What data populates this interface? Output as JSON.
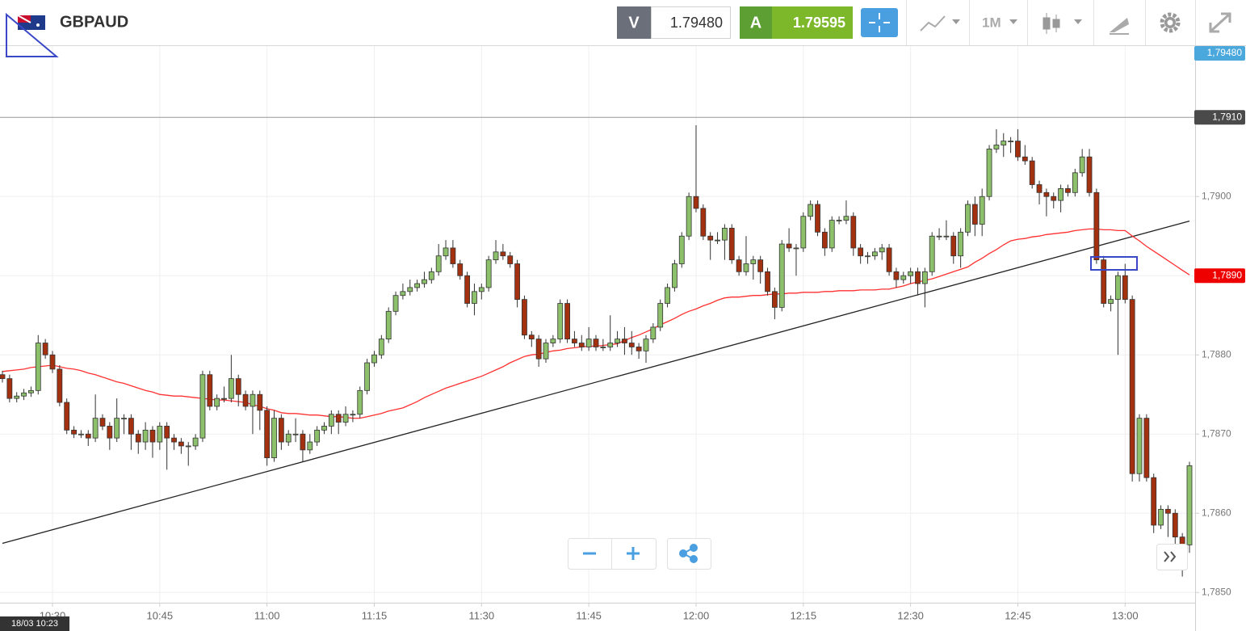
{
  "chart_data": {
    "type": "candlestick",
    "symbol": "GBPAUD",
    "quote": {
      "sell_label": "V",
      "sell": "1.79480",
      "buy_label": "A",
      "buy": "1.79595"
    },
    "timeframe": "1M",
    "start_label": "18/03 10:23",
    "categories": [
      null,
      null,
      null,
      null,
      null,
      null,
      null,
      "10:30",
      null,
      null,
      null,
      null,
      null,
      null,
      null,
      null,
      null,
      null,
      null,
      null,
      null,
      null,
      "10:45",
      null,
      null,
      null,
      null,
      null,
      null,
      null,
      null,
      null,
      null,
      null,
      null,
      null,
      null,
      "11:00",
      null,
      null,
      null,
      null,
      null,
      null,
      null,
      null,
      null,
      null,
      null,
      null,
      null,
      null,
      "11:15",
      null,
      null,
      null,
      null,
      null,
      null,
      null,
      null,
      null,
      null,
      null,
      null,
      null,
      null,
      "11:30",
      null,
      null,
      null,
      null,
      null,
      null,
      null,
      null,
      null,
      null,
      null,
      null,
      null,
      null,
      "11:45",
      null,
      null,
      null,
      null,
      null,
      null,
      null,
      null,
      null,
      null,
      null,
      null,
      null,
      null,
      "12:00",
      null,
      null,
      null,
      null,
      null,
      null,
      null,
      null,
      null,
      null,
      null,
      null,
      null,
      null,
      "12:15",
      null,
      null,
      null,
      null,
      null,
      null,
      null,
      null,
      null,
      null,
      null,
      null,
      null,
      null,
      "12:30",
      null,
      null,
      null,
      null,
      null,
      null,
      null,
      null,
      null,
      null,
      null,
      null,
      null,
      null,
      "12:45",
      null,
      null,
      null,
      null,
      null,
      null,
      null,
      null,
      null,
      null,
      null,
      null,
      null,
      null,
      "13:00",
      null,
      null,
      null,
      null,
      null,
      null,
      null,
      null,
      null
    ],
    "open": [
      1.78775,
      1.7877,
      1.78745,
      1.78748,
      1.78752,
      1.78755,
      1.78815,
      1.788,
      1.78782,
      1.7874,
      1.78705,
      1.787,
      1.787,
      1.78695,
      1.7872,
      1.7871,
      1.78695,
      1.7872,
      1.7872,
      1.787,
      1.7869,
      1.78705,
      1.7869,
      1.7871,
      1.78695,
      1.7869,
      1.78685,
      1.78685,
      1.78695,
      1.78775,
      1.78735,
      1.78745,
      1.78745,
      1.7877,
      1.7875,
      1.78735,
      1.7875,
      1.7873,
      1.7867,
      1.7872,
      1.7869,
      1.787,
      1.787,
      1.7868,
      1.7869,
      1.78705,
      1.7871,
      1.78725,
      1.78715,
      1.78725,
      1.78725,
      1.78755,
      1.7879,
      1.788,
      1.7882,
      1.78855,
      1.78875,
      1.7888,
      1.78885,
      1.7889,
      1.78895,
      1.78905,
      1.78925,
      1.78935,
      1.78915,
      1.789,
      1.78865,
      1.7888,
      1.78885,
      1.7892,
      1.7893,
      1.78925,
      1.78915,
      1.7887,
      1.78825,
      1.7882,
      1.78795,
      1.78815,
      1.7882,
      1.78865,
      1.7882,
      1.78815,
      1.7881,
      1.7882,
      1.7881,
      1.7881,
      1.78815,
      1.7882,
      1.78815,
      1.7881,
      1.78805,
      1.7882,
      1.78835,
      1.78865,
      1.78885,
      1.78915,
      1.7895,
      1.79,
      1.78985,
      1.7895,
      1.78945,
      1.78945,
      1.7896,
      1.7892,
      1.78905,
      1.78915,
      1.7892,
      1.78905,
      1.7888,
      1.7886,
      1.7894,
      1.78935,
      1.78935,
      1.78975,
      1.7899,
      1.78955,
      1.78935,
      1.7897,
      1.7897,
      1.78975,
      1.78935,
      1.78925,
      1.78925,
      1.7893,
      1.78935,
      1.78905,
      1.78895,
      1.789,
      1.78905,
      1.7889,
      1.78905,
      1.7895,
      1.7895,
      1.7895,
      1.78925,
      1.78955,
      1.7899,
      1.78965,
      1.79,
      1.7906,
      1.79065,
      1.7907,
      1.7907,
      1.7905,
      1.79045,
      1.79015,
      1.79005,
      1.79,
      1.78995,
      1.7901,
      1.79005,
      1.7903,
      1.7905,
      1.79005,
      1.7892,
      1.78865,
      1.7887,
      1.789,
      1.7887,
      1.7865,
      1.7872,
      1.78645,
      1.78585,
      1.78605,
      1.786,
      1.7857,
      1.7856
    ],
    "high": [
      1.7878,
      1.78775,
      1.78753,
      1.78757,
      1.7876,
      1.78825,
      1.7882,
      1.78805,
      1.78787,
      1.78745,
      1.7871,
      1.78705,
      1.78705,
      1.7875,
      1.78725,
      1.78715,
      1.78745,
      1.78725,
      1.78725,
      1.78705,
      1.78715,
      1.7871,
      1.78715,
      1.78715,
      1.787,
      1.78695,
      1.7869,
      1.787,
      1.7878,
      1.7878,
      1.7875,
      1.7876,
      1.788,
      1.78775,
      1.78755,
      1.78755,
      1.78755,
      1.78735,
      1.7873,
      1.78725,
      1.78705,
      1.7872,
      1.78705,
      1.787,
      1.7871,
      1.78715,
      1.7873,
      1.7873,
      1.78735,
      1.7873,
      1.7876,
      1.78795,
      1.78805,
      1.78825,
      1.7886,
      1.7888,
      1.7889,
      1.78895,
      1.78895,
      1.78905,
      1.7891,
      1.7894,
      1.78945,
      1.78945,
      1.7892,
      1.78905,
      1.7889,
      1.7889,
      1.78925,
      1.78945,
      1.7894,
      1.7893,
      1.7892,
      1.78875,
      1.7883,
      1.78825,
      1.7882,
      1.78825,
      1.7887,
      1.7887,
      1.7883,
      1.78825,
      1.78835,
      1.78825,
      1.7882,
      1.7885,
      1.7883,
      1.78835,
      1.7883,
      1.78815,
      1.78825,
      1.7884,
      1.7887,
      1.7889,
      1.7892,
      1.78955,
      1.79005,
      1.7909,
      1.7899,
      1.78955,
      1.78955,
      1.78965,
      1.78965,
      1.78925,
      1.7895,
      1.78925,
      1.78925,
      1.7891,
      1.78885,
      1.78945,
      1.7896,
      1.7894,
      1.7898,
      1.78995,
      1.78995,
      1.7896,
      1.78975,
      1.78975,
      1.78995,
      1.7898,
      1.7894,
      1.7893,
      1.78935,
      1.7894,
      1.7894,
      1.7891,
      1.78905,
      1.7891,
      1.7891,
      1.7891,
      1.78955,
      1.7896,
      1.7897,
      1.78955,
      1.7896,
      1.78995,
      1.79,
      1.7901,
      1.79065,
      1.79085,
      1.7908,
      1.79075,
      1.79085,
      1.79065,
      1.7905,
      1.7902,
      1.7901,
      1.79005,
      1.79015,
      1.79015,
      1.79035,
      1.7906,
      1.7906,
      1.7901,
      1.78925,
      1.78875,
      1.78905,
      1.78915,
      1.78875,
      1.78725,
      1.78725,
      1.7865,
      1.7861,
      1.7861,
      1.78605,
      1.78575,
      1.78665
    ],
    "low": [
      1.78765,
      1.7874,
      1.7874,
      1.78743,
      1.78747,
      1.7875,
      1.78795,
      1.78777,
      1.78735,
      1.787,
      1.78695,
      1.78695,
      1.78685,
      1.7869,
      1.78705,
      1.7868,
      1.7869,
      1.787,
      1.7868,
      1.78675,
      1.7868,
      1.7867,
      1.7868,
      1.78655,
      1.7868,
      1.78675,
      1.7866,
      1.7868,
      1.7869,
      1.7873,
      1.7873,
      1.7874,
      1.7874,
      1.78735,
      1.7873,
      1.787,
      1.78705,
      1.7866,
      1.78665,
      1.7868,
      1.78685,
      1.7869,
      1.78665,
      1.78675,
      1.78685,
      1.787,
      1.787,
      1.787,
      1.7871,
      1.78715,
      1.7872,
      1.7875,
      1.78785,
      1.78795,
      1.78815,
      1.7885,
      1.7887,
      1.78875,
      1.7888,
      1.78885,
      1.7889,
      1.789,
      1.7892,
      1.7891,
      1.78895,
      1.7886,
      1.7885,
      1.7887,
      1.7888,
      1.78915,
      1.7892,
      1.7891,
      1.7886,
      1.7882,
      1.7881,
      1.78785,
      1.7879,
      1.7881,
      1.78815,
      1.78815,
      1.7881,
      1.78805,
      1.78805,
      1.78805,
      1.78805,
      1.78805,
      1.7881,
      1.788,
      1.788,
      1.78795,
      1.7879,
      1.78815,
      1.7883,
      1.7886,
      1.7888,
      1.7891,
      1.78945,
      1.7898,
      1.78945,
      1.7892,
      1.7894,
      1.7892,
      1.78915,
      1.789,
      1.789,
      1.78895,
      1.7889,
      1.78875,
      1.78845,
      1.78855,
      1.7893,
      1.789,
      1.7893,
      1.7897,
      1.7895,
      1.78925,
      1.7893,
      1.78965,
      1.78965,
      1.78925,
      1.78915,
      1.78915,
      1.7892,
      1.7892,
      1.789,
      1.78885,
      1.7889,
      1.7889,
      1.78875,
      1.7886,
      1.789,
      1.78945,
      1.78945,
      1.78915,
      1.7891,
      1.7895,
      1.7895,
      1.7895,
      1.78995,
      1.79055,
      1.7905,
      1.79055,
      1.79045,
      1.7904,
      1.7901,
      1.7899,
      1.78975,
      1.78985,
      1.7898,
      1.79,
      1.79,
      1.79025,
      1.79,
      1.78915,
      1.7886,
      1.78855,
      1.788,
      1.78865,
      1.7864,
      1.7864,
      1.7864,
      1.78575,
      1.7858,
      1.7857,
      1.7856,
      1.7852,
      1.7855
    ],
    "close": [
      1.7877,
      1.78745,
      1.78748,
      1.78752,
      1.78755,
      1.78815,
      1.788,
      1.78782,
      1.7874,
      1.78705,
      1.787,
      1.787,
      1.78695,
      1.7872,
      1.7871,
      1.78695,
      1.7872,
      1.7872,
      1.787,
      1.7869,
      1.78705,
      1.7869,
      1.7871,
      1.78695,
      1.7869,
      1.78685,
      1.78685,
      1.78695,
      1.78775,
      1.78735,
      1.78745,
      1.78745,
      1.7877,
      1.7875,
      1.78735,
      1.7875,
      1.7873,
      1.7867,
      1.7872,
      1.7869,
      1.787,
      1.787,
      1.7868,
      1.7869,
      1.78705,
      1.7871,
      1.78725,
      1.78715,
      1.78725,
      1.78725,
      1.78755,
      1.7879,
      1.788,
      1.7882,
      1.78855,
      1.78875,
      1.7888,
      1.78885,
      1.7889,
      1.78895,
      1.78905,
      1.78925,
      1.78935,
      1.78915,
      1.789,
      1.78865,
      1.7888,
      1.78885,
      1.7892,
      1.7893,
      1.78925,
      1.78915,
      1.7887,
      1.78825,
      1.7882,
      1.78795,
      1.78815,
      1.7882,
      1.78865,
      1.7882,
      1.78815,
      1.7881,
      1.7882,
      1.7881,
      1.7881,
      1.78815,
      1.7882,
      1.78815,
      1.7881,
      1.78805,
      1.7882,
      1.78835,
      1.78865,
      1.78885,
      1.78915,
      1.7895,
      1.79,
      1.78985,
      1.7895,
      1.78945,
      1.78945,
      1.7896,
      1.7892,
      1.78905,
      1.78915,
      1.7892,
      1.78905,
      1.7888,
      1.7886,
      1.7894,
      1.78935,
      1.78935,
      1.78975,
      1.7899,
      1.78955,
      1.78935,
      1.7897,
      1.7897,
      1.78975,
      1.78935,
      1.78925,
      1.78925,
      1.7893,
      1.78935,
      1.78905,
      1.78895,
      1.789,
      1.78905,
      1.7889,
      1.78905,
      1.7895,
      1.7895,
      1.7895,
      1.78925,
      1.78955,
      1.7899,
      1.78965,
      1.79,
      1.7906,
      1.79065,
      1.7907,
      1.7907,
      1.7905,
      1.79045,
      1.79015,
      1.79005,
      1.79,
      1.78995,
      1.7901,
      1.79005,
      1.7903,
      1.7905,
      1.79005,
      1.7892,
      1.78865,
      1.7887,
      1.789,
      1.7887,
      1.7865,
      1.7872,
      1.78645,
      1.78585,
      1.78605,
      1.786,
      1.7857,
      1.7856,
      1.7866
    ],
    "moving_average": [
      1.78779,
      1.7878,
      1.78781,
      1.78782,
      1.78784,
      1.78785,
      1.78786,
      1.78787,
      1.78785,
      1.78783,
      1.78782,
      1.7878,
      1.78777,
      1.78775,
      1.78772,
      1.78769,
      1.78766,
      1.78764,
      1.78761,
      1.78758,
      1.78755,
      1.78753,
      1.7875,
      1.78749,
      1.78748,
      1.78748,
      1.78747,
      1.78746,
      1.78745,
      1.78744,
      1.78743,
      1.78743,
      1.78742,
      1.78741,
      1.7874,
      1.78737,
      1.78735,
      1.78732,
      1.7873,
      1.78727,
      1.78726,
      1.78726,
      1.78725,
      1.78724,
      1.78724,
      1.78723,
      1.78722,
      1.78722,
      1.78721,
      1.7872,
      1.7872,
      1.78722,
      1.78724,
      1.78726,
      1.78729,
      1.78731,
      1.78733,
      1.78737,
      1.78741,
      1.78746,
      1.7875,
      1.78754,
      1.78758,
      1.78761,
      1.78764,
      1.78767,
      1.7877,
      1.78773,
      1.78777,
      1.78781,
      1.78785,
      1.7879,
      1.78794,
      1.78798,
      1.788,
      1.78801,
      1.78803,
      1.78805,
      1.78806,
      1.78808,
      1.78809,
      1.7881,
      1.78811,
      1.78811,
      1.78812,
      1.78813,
      1.78814,
      1.78818,
      1.78822,
      1.78825,
      1.78829,
      1.78833,
      1.78838,
      1.78842,
      1.78846,
      1.78851,
      1.78855,
      1.78858,
      1.78862,
      1.78865,
      1.78869,
      1.78872,
      1.78873,
      1.78873,
      1.78874,
      1.78875,
      1.78875,
      1.78876,
      1.78877,
      1.78877,
      1.78878,
      1.78878,
      1.78879,
      1.78879,
      1.78879,
      1.7888,
      1.7888,
      1.78881,
      1.78881,
      1.78881,
      1.78882,
      1.78882,
      1.78882,
      1.78883,
      1.78883,
      1.78885,
      1.78887,
      1.7889,
      1.78892,
      1.78894,
      1.78896,
      1.78899,
      1.78902,
      1.78905,
      1.78908,
      1.78911,
      1.78917,
      1.78922,
      1.78928,
      1.78933,
      1.78939,
      1.78944,
      1.78946,
      1.78947,
      1.78949,
      1.7895,
      1.78952,
      1.78953,
      1.78954,
      1.78955,
      1.78957,
      1.78958,
      1.78959,
      1.78959,
      1.78958,
      1.78958,
      1.78957,
      1.78957,
      1.7895,
      1.78944,
      1.78937,
      1.78931,
      1.78925,
      1.78919,
      1.78913,
      1.78907,
      1.78901
    ],
    "trend_line": [
      1.78562,
      1.78969
    ],
    "up_color": "#8cc06a",
    "down_color": "#a3300f",
    "ma_color": "#ff3030",
    "trend_color": "#222222",
    "ylim": [
      1.78487,
      1.7919
    ],
    "yticks": [
      {
        "value": 1.785,
        "label": "1,7850"
      },
      {
        "value": 1.786,
        "label": "1,7860"
      },
      {
        "value": 1.787,
        "label": "1,7870"
      },
      {
        "value": 1.788,
        "label": "1,7880"
      },
      {
        "value": 1.789,
        "label": "1,7890"
      },
      {
        "value": 1.79,
        "label": "1,7900"
      }
    ],
    "grid": true,
    "price_tags": [
      {
        "value": 1.7948,
        "label": "1,79480",
        "color": "#4aa8dc",
        "line": false
      },
      {
        "value": 1.791,
        "label": "1,7910",
        "color": "#4a4a4a",
        "line": true
      },
      {
        "value": 1.789,
        "label": "1,7890",
        "color": "#ee0000",
        "line": false
      }
    ]
  }
}
